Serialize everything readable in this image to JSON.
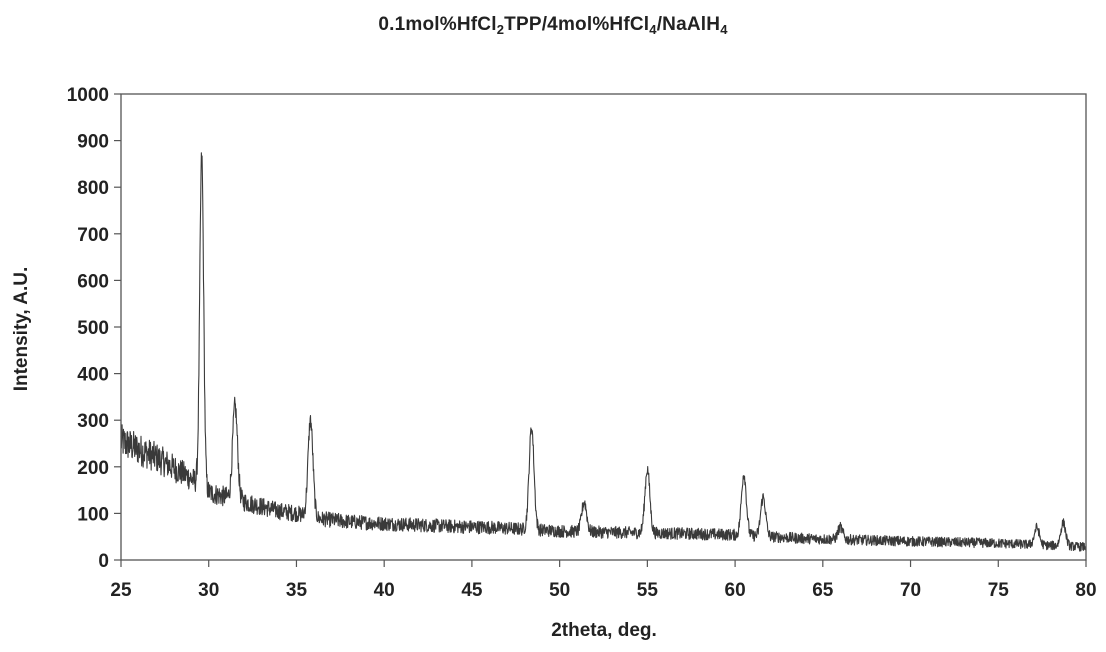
{
  "chart_data": {
    "type": "line",
    "title": "0.1mol%HfCl2TPP/4mol%HfCl4/NaAlH4",
    "title_parts": [
      {
        "text": "0.1mol%HfCl",
        "sub": false
      },
      {
        "text": "2",
        "sub": true
      },
      {
        "text": "TPP/4mol%HfCl",
        "sub": false
      },
      {
        "text": "4",
        "sub": true
      },
      {
        "text": "/NaAlH",
        "sub": false
      },
      {
        "text": "4",
        "sub": true
      }
    ],
    "xlabel": "2theta, deg.",
    "ylabel": "Intensity, A.U.",
    "xlim": [
      25,
      80
    ],
    "ylim": [
      0,
      1000
    ],
    "xticks": [
      25,
      30,
      35,
      40,
      45,
      50,
      55,
      60,
      65,
      70,
      75,
      80
    ],
    "yticks": [
      0,
      100,
      200,
      300,
      400,
      500,
      600,
      700,
      800,
      900,
      1000
    ],
    "grid": false,
    "legend": "none",
    "line_color": "#3a3a3a",
    "series": [
      {
        "background": [
          [
            25,
            255
          ],
          [
            27,
            220
          ],
          [
            29,
            175
          ],
          [
            30,
            145
          ],
          [
            31,
            135
          ],
          [
            32,
            125
          ],
          [
            33,
            115
          ],
          [
            34,
            105
          ],
          [
            35,
            100
          ],
          [
            36,
            90
          ],
          [
            38,
            82
          ],
          [
            40,
            78
          ],
          [
            42,
            75
          ],
          [
            44,
            72
          ],
          [
            46,
            70
          ],
          [
            48,
            66
          ],
          [
            50,
            62
          ],
          [
            52,
            60
          ],
          [
            55,
            58
          ],
          [
            58,
            56
          ],
          [
            60,
            54
          ],
          [
            62,
            50
          ],
          [
            64,
            46
          ],
          [
            66,
            44
          ],
          [
            70,
            40
          ],
          [
            75,
            36
          ],
          [
            80,
            28
          ]
        ],
        "peaks": [
          [
            29.6,
            865
          ],
          [
            31.5,
            330
          ],
          [
            35.8,
            300
          ],
          [
            48.4,
            285
          ],
          [
            51.4,
            125
          ],
          [
            55.0,
            195
          ],
          [
            60.5,
            185
          ],
          [
            61.6,
            135
          ],
          [
            66.0,
            70
          ],
          [
            77.2,
            70
          ],
          [
            78.7,
            80
          ]
        ]
      }
    ]
  }
}
